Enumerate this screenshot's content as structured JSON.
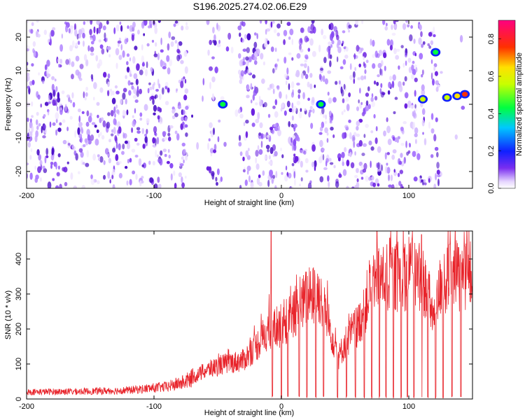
{
  "title": "S196.2025.274.02.06.E29",
  "chart_data": [
    {
      "type": "heatmap",
      "xlabel": "Height of straight line (km)",
      "ylabel": "Frequency (Hz)",
      "xlim": [
        -200,
        150
      ],
      "ylim": [
        -25,
        25
      ],
      "xticks": [
        -200,
        -100,
        0,
        100
      ],
      "yticks": [
        -20,
        -10,
        0,
        10,
        20
      ],
      "colorbar": {
        "label": "Normalized spectral amplitude",
        "range": [
          0.0,
          0.9
        ],
        "ticks": [
          "0.0",
          "0.2",
          "0.4",
          "0.6",
          "0.8"
        ],
        "colormap": "rainbow"
      },
      "blank_gaps_km": [
        [
          -74,
          -58
        ],
        [
          -48,
          -33
        ],
        [
          27,
          30
        ],
        [
          113,
          116
        ],
        [
          124,
          126
        ],
        [
          124,
          150
        ]
      ],
      "hot_spots": [
        {
          "x": -46,
          "y": 0,
          "amplitude": 0.45
        },
        {
          "x": 31,
          "y": 0,
          "amplitude": 0.55
        },
        {
          "x": 111,
          "y": 1.5,
          "amplitude": 0.6
        },
        {
          "x": 121,
          "y": 15.5,
          "amplitude": 0.55
        },
        {
          "x": 130,
          "y": 2,
          "amplitude": 0.65
        },
        {
          "x": 138,
          "y": 2.5,
          "amplitude": 0.8
        },
        {
          "x": 144,
          "y": 3,
          "amplitude": 0.85
        }
      ]
    },
    {
      "type": "line",
      "xlabel": "Height of straight line (km)",
      "ylabel": "SNR (10 * v/v)",
      "xlim": [
        -200,
        150
      ],
      "ylim": [
        0,
        480
      ],
      "xticks": [
        -200,
        -100,
        0,
        100
      ],
      "yticks": [
        0,
        100,
        200,
        300,
        400
      ],
      "color": "#e8232a",
      "envelope": [
        {
          "x": -200,
          "y": 20
        },
        {
          "x": -150,
          "y": 22
        },
        {
          "x": -120,
          "y": 25
        },
        {
          "x": -90,
          "y": 35
        },
        {
          "x": -75,
          "y": 50
        },
        {
          "x": -60,
          "y": 80
        },
        {
          "x": -45,
          "y": 100
        },
        {
          "x": -30,
          "y": 110
        },
        {
          "x": -20,
          "y": 150
        },
        {
          "x": -10,
          "y": 200
        },
        {
          "x": 0,
          "y": 210
        },
        {
          "x": 10,
          "y": 240
        },
        {
          "x": 20,
          "y": 290
        },
        {
          "x": 30,
          "y": 300
        },
        {
          "x": 40,
          "y": 180
        },
        {
          "x": 45,
          "y": 120
        },
        {
          "x": 50,
          "y": 160
        },
        {
          "x": 55,
          "y": 190
        },
        {
          "x": 60,
          "y": 210
        },
        {
          "x": 65,
          "y": 250
        },
        {
          "x": 70,
          "y": 330
        },
        {
          "x": 80,
          "y": 350
        },
        {
          "x": 90,
          "y": 350
        },
        {
          "x": 100,
          "y": 360
        },
        {
          "x": 110,
          "y": 350
        },
        {
          "x": 115,
          "y": 300
        },
        {
          "x": 120,
          "y": 220
        },
        {
          "x": 125,
          "y": 330
        },
        {
          "x": 135,
          "y": 350
        },
        {
          "x": 145,
          "y": 360
        },
        {
          "x": 150,
          "y": 350
        }
      ],
      "peaks": [
        {
          "x": -8,
          "y": 480
        },
        {
          "x": 75,
          "y": 480
        },
        {
          "x": 85,
          "y": 460
        },
        {
          "x": 110,
          "y": 470
        }
      ],
      "dropouts_km": [
        -7,
        0,
        5,
        14,
        20,
        27,
        33,
        44,
        51,
        58,
        65,
        71,
        77,
        82,
        88,
        94,
        99,
        104,
        110,
        115,
        121,
        127,
        134,
        141
      ]
    }
  ]
}
